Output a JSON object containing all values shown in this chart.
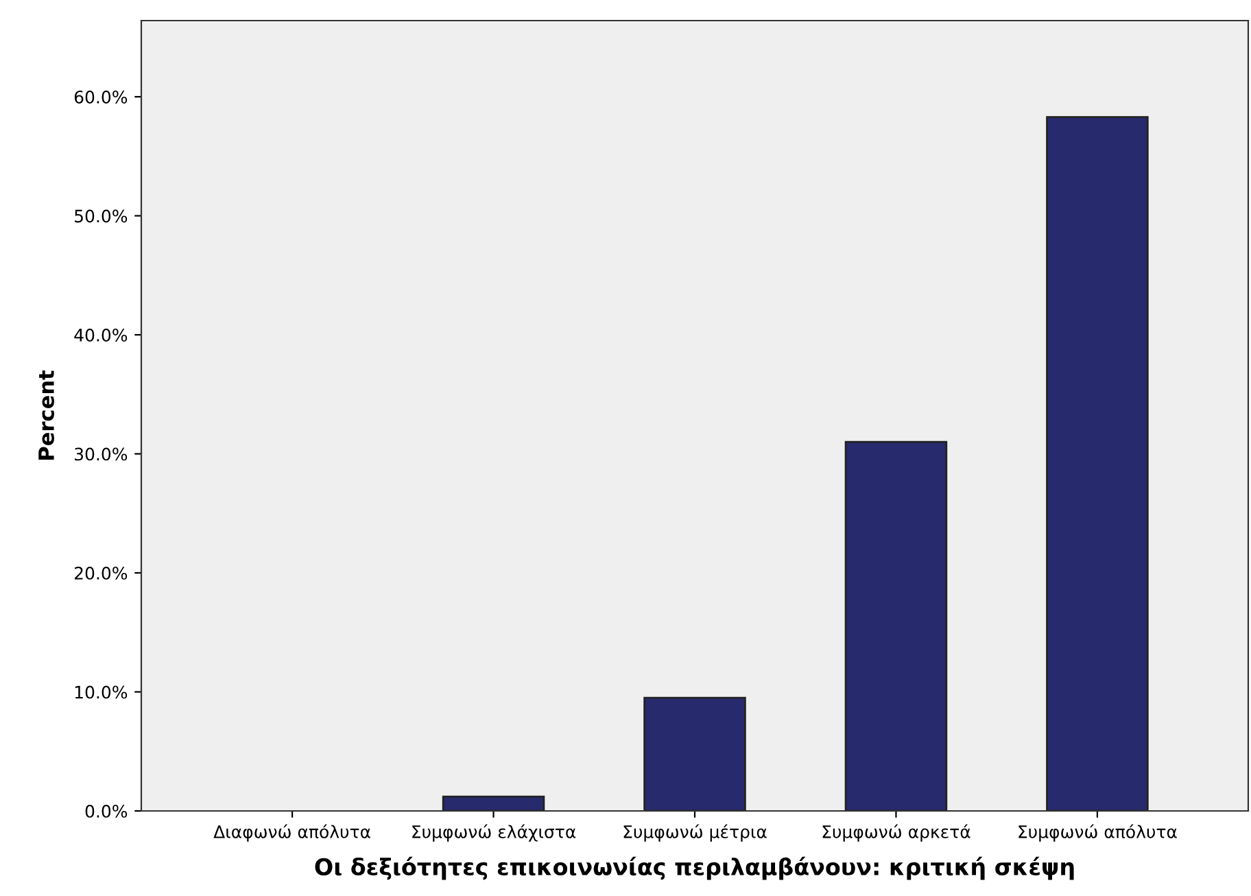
{
  "chart_data": {
    "type": "bar",
    "xlabel": "Οι δεξιότητες επικοινωνίας περιλαμβάνουν: κριτική σκέψη",
    "ylabel": "Percent",
    "categories": [
      "Διαφωνώ απόλυτα",
      "Συμφωνώ ελάχιστα",
      "Συμφωνώ μέτρια",
      "Συμφωνώ αρκετά",
      "Συμφωνώ απόλυτα"
    ],
    "values": [
      0,
      1.2,
      9.5,
      31.0,
      58.3
    ],
    "color": "#282a6e",
    "ylim": [
      0,
      66.4
    ],
    "yticks": [
      {
        "value": 0,
        "label": "0.0%"
      },
      {
        "value": 10,
        "label": "10.0%"
      },
      {
        "value": 20,
        "label": "20.0%"
      },
      {
        "value": 30,
        "label": "30.0%"
      },
      {
        "value": 40,
        "label": "40.0%"
      },
      {
        "value": 50,
        "label": "50.0%"
      },
      {
        "value": 60,
        "label": "60.0%"
      }
    ],
    "grid": false
  }
}
